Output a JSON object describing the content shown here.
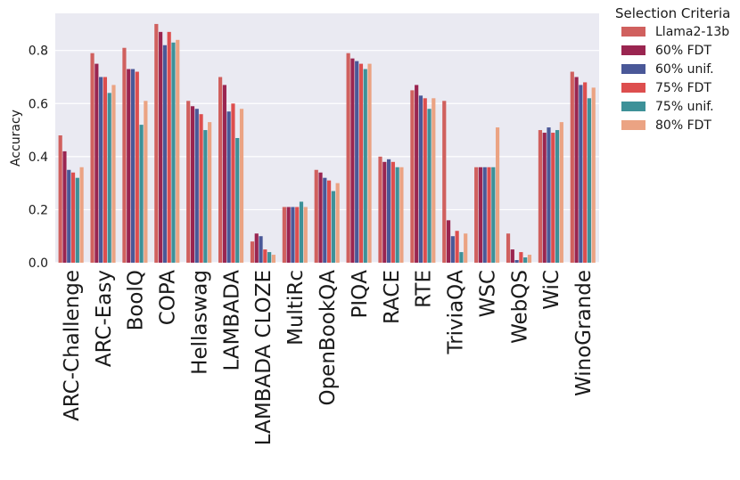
{
  "chart_data": {
    "type": "bar",
    "ylabel": "Accuracy",
    "xlabel": "",
    "ylim": [
      0,
      0.94
    ],
    "yticks": [
      "0.0",
      "0.2",
      "0.4",
      "0.6",
      "0.8"
    ],
    "grid": true,
    "legend_position": "outside-right",
    "legend_title": "Selection Criteria",
    "background": "#eaeaf2",
    "categories": [
      "ARC-Challenge",
      "ARC-Easy",
      "BoolQ",
      "COPA",
      "Hellaswag",
      "LAMBADA",
      "LAMBADA CLOZE",
      "MultiRc",
      "OpenBookQA",
      "PIQA",
      "RACE",
      "RTE",
      "TriviaQA",
      "WSC",
      "WebQS",
      "WiC",
      "WinoGrande"
    ],
    "series": [
      {
        "name": "Llama2-13b",
        "color": "#d0605e",
        "values": [
          0.48,
          0.79,
          0.81,
          0.9,
          0.61,
          0.7,
          0.08,
          0.21,
          0.35,
          0.79,
          0.4,
          0.65,
          0.61,
          0.36,
          0.11,
          0.5,
          0.72
        ]
      },
      {
        "name": "60% FDT",
        "color": "#9a2550",
        "values": [
          0.42,
          0.75,
          0.73,
          0.87,
          0.59,
          0.67,
          0.11,
          0.21,
          0.34,
          0.77,
          0.38,
          0.67,
          0.16,
          0.36,
          0.05,
          0.49,
          0.7
        ]
      },
      {
        "name": "60% unif.",
        "color": "#4a5898",
        "values": [
          0.35,
          0.7,
          0.73,
          0.82,
          0.58,
          0.57,
          0.1,
          0.21,
          0.32,
          0.76,
          0.39,
          0.63,
          0.1,
          0.36,
          0.01,
          0.51,
          0.67
        ]
      },
      {
        "name": "75% FDT",
        "color": "#dd4e4e",
        "values": [
          0.34,
          0.7,
          0.72,
          0.87,
          0.56,
          0.6,
          0.05,
          0.21,
          0.31,
          0.75,
          0.38,
          0.62,
          0.12,
          0.36,
          0.04,
          0.49,
          0.68
        ]
      },
      {
        "name": "75% unif.",
        "color": "#3d9198",
        "values": [
          0.32,
          0.64,
          0.52,
          0.83,
          0.5,
          0.47,
          0.04,
          0.23,
          0.27,
          0.73,
          0.36,
          0.58,
          0.04,
          0.36,
          0.02,
          0.5,
          0.62
        ]
      },
      {
        "name": "80% FDT",
        "color": "#eba383",
        "values": [
          0.36,
          0.67,
          0.61,
          0.84,
          0.53,
          0.58,
          0.03,
          0.21,
          0.3,
          0.75,
          0.36,
          0.62,
          0.11,
          0.51,
          0.03,
          0.53,
          0.66
        ]
      }
    ]
  }
}
